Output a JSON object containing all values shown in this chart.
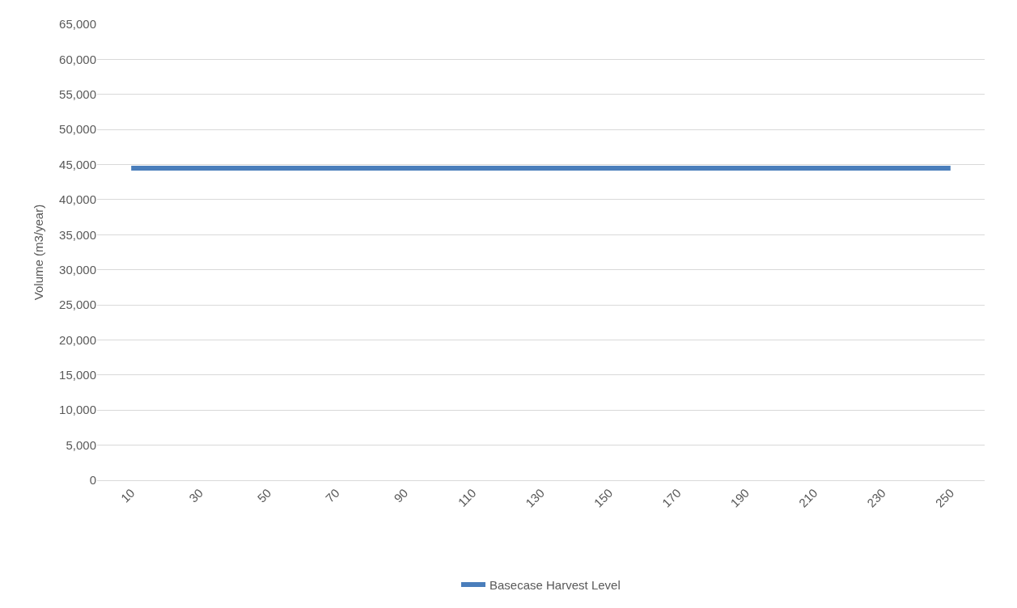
{
  "chart_data": {
    "type": "line",
    "ylabel": "Volume (m3/year)",
    "categories": [
      "10",
      "30",
      "50",
      "70",
      "90",
      "110",
      "130",
      "150",
      "170",
      "190",
      "210",
      "230",
      "250"
    ],
    "series": [
      {
        "name": "Basecase Harvest Level",
        "color": "#4a7ebb",
        "values": [
          44500,
          44500,
          44500,
          44500,
          44500,
          44500,
          44500,
          44500,
          44500,
          44500,
          44500,
          44500,
          44500
        ]
      }
    ],
    "ylim": [
      0,
      65000
    ],
    "yticks": [
      {
        "value": 0,
        "label": "0"
      },
      {
        "value": 5000,
        "label": "5,000"
      },
      {
        "value": 10000,
        "label": "10,000"
      },
      {
        "value": 15000,
        "label": "15,000"
      },
      {
        "value": 20000,
        "label": "20,000"
      },
      {
        "value": 25000,
        "label": "25,000"
      },
      {
        "value": 30000,
        "label": "30,000"
      },
      {
        "value": 35000,
        "label": "35,000"
      },
      {
        "value": 40000,
        "label": "40,000"
      },
      {
        "value": 45000,
        "label": "45,000"
      },
      {
        "value": 50000,
        "label": "50,000"
      },
      {
        "value": 55000,
        "label": "55,000"
      },
      {
        "value": 60000,
        "label": "60,000"
      },
      {
        "value": 65000,
        "label": "65,000"
      }
    ],
    "grid": "y",
    "legend": "bottom",
    "marker": "none",
    "line_style": "solid"
  }
}
